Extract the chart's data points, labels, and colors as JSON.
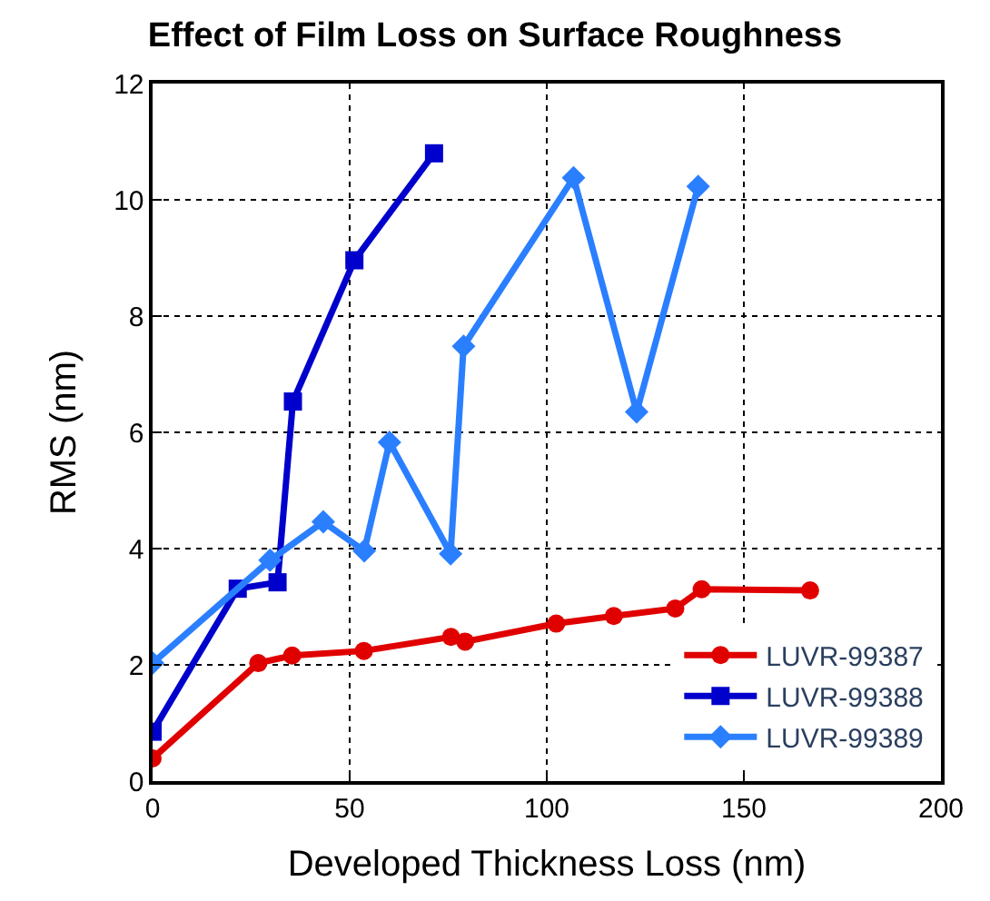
{
  "chart_data": {
    "type": "line",
    "title": "Effect of Film Loss on Surface Roughness",
    "xlabel": "Developed Thickness Loss (nm)",
    "ylabel": "RMS (nm)",
    "xlim": [
      0,
      200
    ],
    "xticks": [
      0,
      50,
      100,
      150,
      200
    ],
    "ylim": [
      0,
      12
    ],
    "yticks": [
      0,
      2,
      4,
      6,
      8,
      10,
      12
    ],
    "grid": true,
    "legend": "bottom right",
    "line_style": "solid",
    "series": [
      {
        "name": "LUVR-99387",
        "color": "#e00000",
        "marker": "circle",
        "x": [
          0,
          26.8,
          35.4,
          53.6,
          75.7,
          79.3,
          102.4,
          117,
          132.6,
          139.3,
          166.8
        ],
        "values": [
          0.39,
          2.03,
          2.16,
          2.24,
          2.48,
          2.4,
          2.71,
          2.84,
          2.97,
          3.3,
          3.28
        ]
      },
      {
        "name": "LUVR-99388",
        "color": "#0000cc",
        "marker": "square",
        "x": [
          0,
          21.6,
          31.7,
          35.6,
          51.2,
          71.4
        ],
        "values": [
          0.85,
          3.31,
          3.42,
          6.53,
          8.96,
          10.8
        ]
      },
      {
        "name": "LUVR-99389",
        "color": "#2a7fff",
        "marker": "diamond",
        "x": [
          0,
          29.8,
          43.3,
          53.7,
          60.1,
          75.6,
          78.9,
          106.8,
          122.8,
          138.4
        ],
        "values": [
          2.03,
          3.8,
          4.46,
          3.96,
          5.83,
          3.91,
          7.48,
          10.38,
          6.35,
          10.23
        ]
      }
    ]
  }
}
